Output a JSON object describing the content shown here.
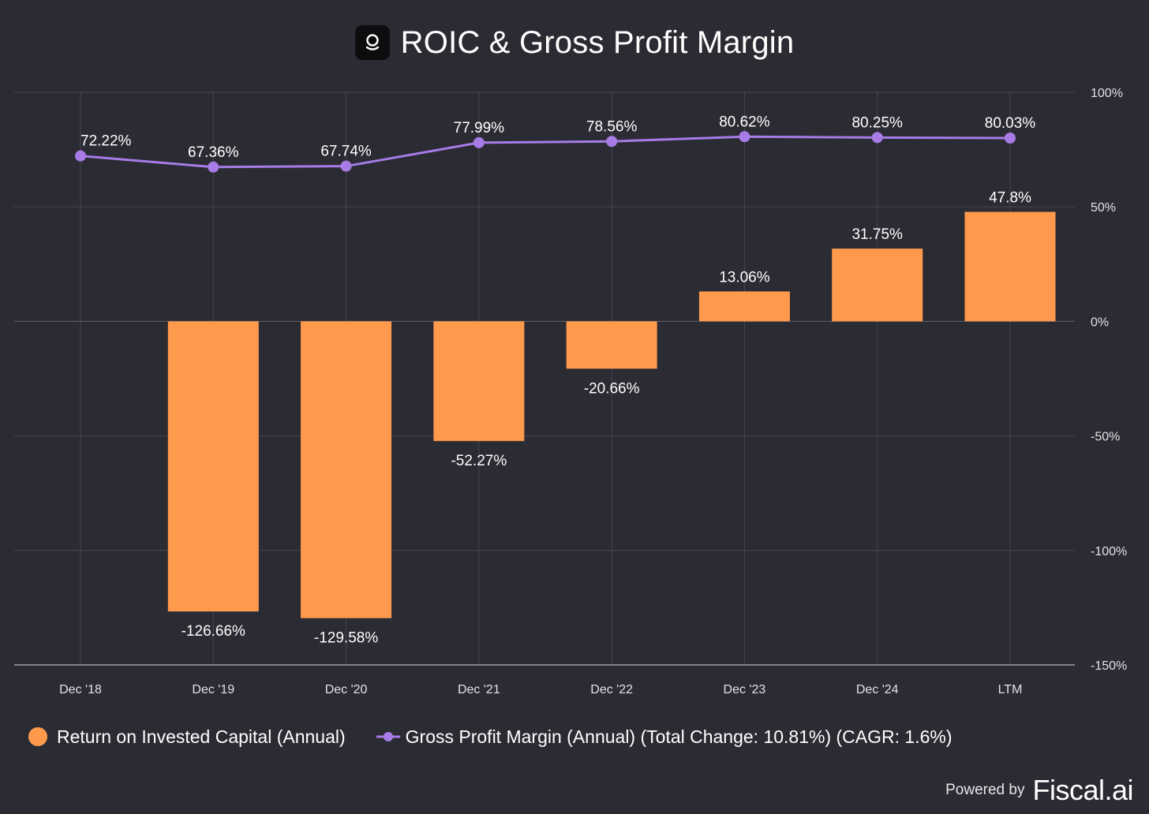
{
  "header": {
    "title": "ROIC & Gross Profit Margin",
    "logo": "fiscal-logo-icon"
  },
  "chart_data": {
    "type": "bar+line",
    "categories": [
      "Dec '18",
      "Dec '19",
      "Dec '20",
      "Dec '21",
      "Dec '22",
      "Dec '23",
      "Dec '24",
      "LTM"
    ],
    "series": [
      {
        "name": "Return on Invested Capital (Annual)",
        "type": "bar",
        "color": "#ff9a4d",
        "values": [
          null,
          -126.66,
          -129.58,
          -52.27,
          -20.66,
          13.06,
          31.75,
          47.8
        ],
        "labels": [
          "",
          "-126.66%",
          "-129.58%",
          "-52.27%",
          "-20.66%",
          "13.06%",
          "31.75%",
          "47.8%"
        ]
      },
      {
        "name": "Gross Profit Margin (Annual)",
        "type": "line",
        "color": "#a77ce6",
        "values": [
          72.22,
          67.36,
          67.74,
          77.99,
          78.56,
          80.62,
          80.25,
          80.03
        ],
        "labels": [
          "72.22%",
          "67.36%",
          "67.74%",
          "77.99%",
          "78.56%",
          "80.62%",
          "80.25%",
          "80.03%"
        ]
      }
    ],
    "yaxis": {
      "position": "right",
      "min": -150,
      "max": 100,
      "ticks": [
        100,
        50,
        0,
        -50,
        -100,
        -150
      ],
      "tick_labels": [
        "100%",
        "50%",
        "0%",
        "-50%",
        "-100%",
        "-150%"
      ]
    },
    "grid": true,
    "legend": "bottom-left"
  },
  "legend": {
    "roic_label": "Return on Invested Capital (Annual)",
    "gpm_label": "Gross Profit Margin (Annual) (Total Change: 10.81%) (CAGR: 1.6%)"
  },
  "footer": {
    "powered_by": "Powered by",
    "brand": "Fiscal.ai"
  }
}
